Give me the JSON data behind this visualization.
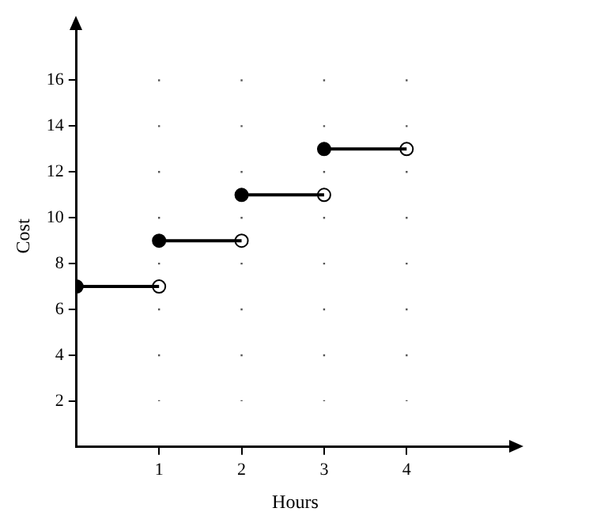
{
  "chart_data": {
    "type": "line",
    "xlabel": "Hours",
    "ylabel": "Cost",
    "xlim": [
      0,
      5.3
    ],
    "ylim": [
      0,
      18.4
    ],
    "xticks": [
      1,
      2,
      3,
      4
    ],
    "yticks": [
      2,
      4,
      6,
      8,
      10,
      12,
      14,
      16
    ],
    "grid": "x",
    "legend": false,
    "series": [
      {
        "color": "#000000",
        "marker": "none",
        "x": [
          0,
          1
        ],
        "values": [
          7,
          7
        ]
      },
      {
        "color": "#000000",
        "marker": "none",
        "x": [
          1,
          2
        ],
        "values": [
          9,
          9
        ]
      },
      {
        "color": "#000000",
        "marker": "none",
        "x": [
          2,
          3
        ],
        "values": [
          11,
          11
        ]
      },
      {
        "color": "#000000",
        "marker": "none",
        "x": [
          3,
          4
        ],
        "values": [
          13,
          13
        ]
      },
      {
        "type": "scatter",
        "color": "#000000",
        "marker": "circle",
        "x": [
          0,
          1,
          2,
          3
        ],
        "values": [
          7,
          9,
          11,
          13
        ]
      },
      {
        "type": "scatter",
        "color": "#ffffff",
        "marker": "circle",
        "x": [
          1,
          2,
          3,
          4
        ],
        "values": [
          7,
          9,
          11,
          13
        ]
      }
    ]
  }
}
